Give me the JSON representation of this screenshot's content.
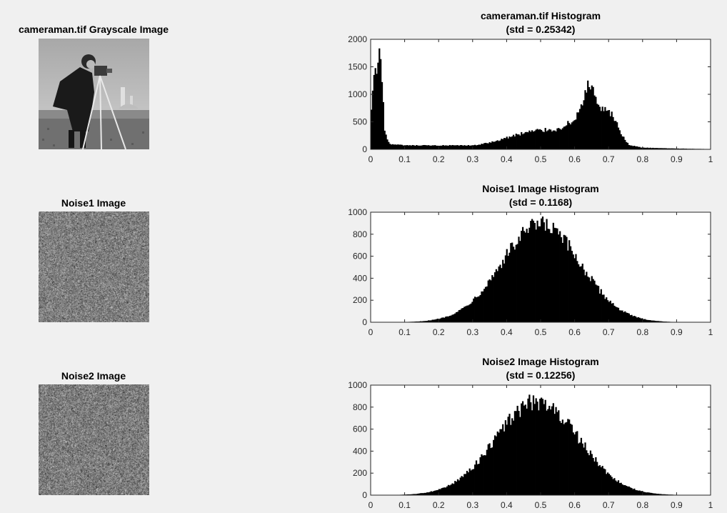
{
  "images": [
    {
      "title": "cameraman.tif Grayscale Image",
      "kind": "cameraman"
    },
    {
      "title": "Noise1 Image",
      "kind": "noise"
    },
    {
      "title": "Noise2 Image",
      "kind": "noise"
    }
  ],
  "chart_data": [
    {
      "type": "bar",
      "title": "cameraman.tif Histogram",
      "subtitle": "(std = 0.25342)",
      "xlim": [
        0,
        1
      ],
      "ylim": [
        0,
        2000
      ],
      "xticks": [
        "0",
        "0.1",
        "0.2",
        "0.3",
        "0.4",
        "0.5",
        "0.6",
        "0.7",
        "0.8",
        "0.9",
        "1"
      ],
      "yticks": [
        "0",
        "500",
        "1000",
        "1500",
        "2000"
      ],
      "x": [
        0.0,
        0.01,
        0.02,
        0.025,
        0.03,
        0.04,
        0.05,
        0.06,
        0.1,
        0.2,
        0.3,
        0.35,
        0.4,
        0.45,
        0.5,
        0.55,
        0.6,
        0.62,
        0.64,
        0.65,
        0.66,
        0.68,
        0.7,
        0.72,
        0.74,
        0.76,
        0.8,
        0.9,
        1.0
      ],
      "values": [
        700,
        1400,
        1550,
        1700,
        1300,
        300,
        130,
        90,
        70,
        70,
        70,
        120,
        210,
        300,
        350,
        360,
        530,
        800,
        1150,
        1100,
        950,
        700,
        680,
        550,
        250,
        80,
        30,
        15,
        5
      ]
    },
    {
      "type": "bar",
      "title": "Noise1 Image Histogram",
      "subtitle": "(std = 0.1168)",
      "xlim": [
        0,
        1
      ],
      "ylim": [
        0,
        1000
      ],
      "xticks": [
        "0",
        "0.1",
        "0.2",
        "0.3",
        "0.4",
        "0.5",
        "0.6",
        "0.7",
        "0.8",
        "0.9",
        "1"
      ],
      "yticks": [
        "0",
        "200",
        "400",
        "600",
        "800",
        "1000"
      ],
      "mean": 0.5,
      "std": 0.1168,
      "peak": 880
    },
    {
      "type": "bar",
      "title": "Noise2 Image Histogram",
      "subtitle": "(std = 0.12256)",
      "xlim": [
        0,
        1
      ],
      "ylim": [
        0,
        1000
      ],
      "xticks": [
        "0",
        "0.1",
        "0.2",
        "0.3",
        "0.4",
        "0.5",
        "0.6",
        "0.7",
        "0.8",
        "0.9",
        "1"
      ],
      "yticks": [
        "0",
        "200",
        "400",
        "600",
        "800",
        "1000"
      ],
      "mean": 0.49,
      "std": 0.12256,
      "peak": 850
    }
  ]
}
